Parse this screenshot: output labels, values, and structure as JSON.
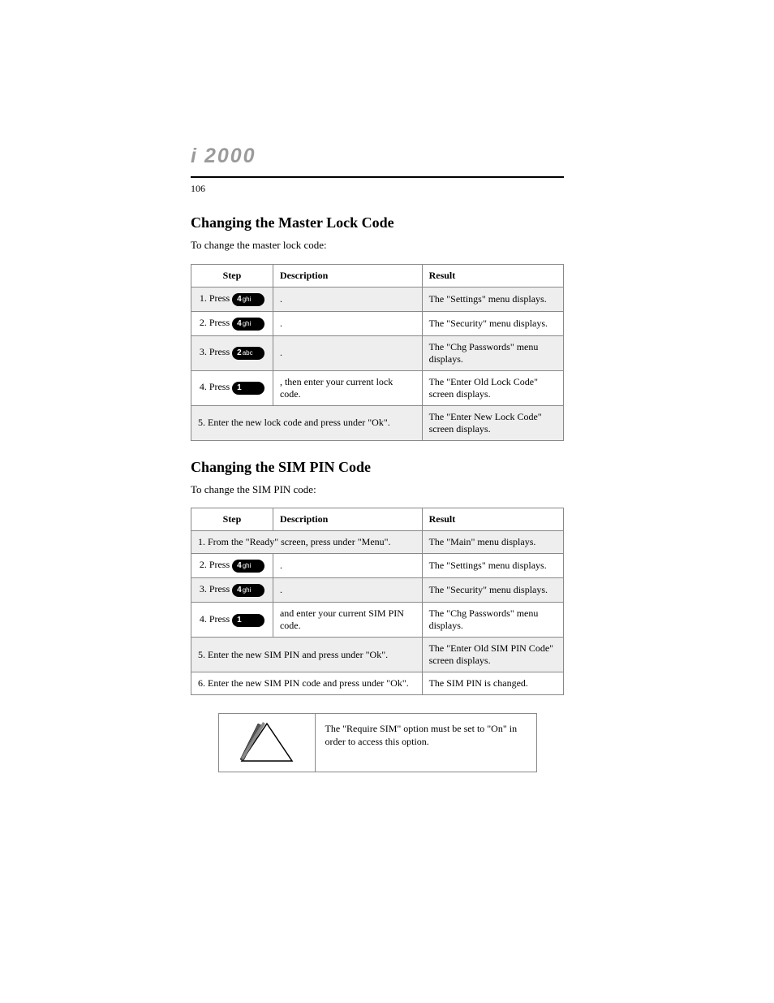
{
  "logo": {
    "i": "i",
    "num": "2000"
  },
  "page_number": "106",
  "section1": {
    "title": "Changing the Master Lock Code",
    "intro": "To change the master lock code:",
    "table": {
      "headers": [
        "Step",
        "Description",
        "Result"
      ],
      "rows": [
        {
          "shaded": true,
          "key_num": "4",
          "key_letters": "ghi",
          "prefix": "1. Press ",
          "suffix": ".",
          "result": "The \"Settings\" menu displays."
        },
        {
          "shaded": false,
          "key_num": "4",
          "key_letters": "ghi",
          "prefix": "2. Press ",
          "suffix": ".",
          "result": "The \"Security\" menu displays."
        },
        {
          "shaded": true,
          "key_num": "2",
          "key_letters": "abc",
          "prefix": "3. Press ",
          "suffix": ".",
          "result": "The \"Chg Passwords\" menu displays."
        },
        {
          "shaded": false,
          "key_num": "1",
          "key_letters": "",
          "prefix": "4. Press ",
          "suffix": ", then enter your current lock code.",
          "result": "The \"Enter Old Lock Code\" screen displays."
        },
        {
          "shaded": true,
          "colspan_text": "5. Enter the new lock code and press   under \"Ok\".",
          "result": "The \"Enter New Lock Code\" screen displays."
        }
      ]
    }
  },
  "section2": {
    "title": "Changing the SIM PIN Code",
    "intro": "To change the SIM PIN code:",
    "table": {
      "headers": [
        "Step",
        "Description",
        "Result"
      ],
      "rows": [
        {
          "shaded": true,
          "colspan_text": "1. From the \"Ready\" screen, press   under \"Menu\".",
          "result": "The \"Main\" menu displays."
        },
        {
          "shaded": false,
          "key_num": "4",
          "key_letters": "ghi",
          "prefix": "2. Press ",
          "suffix": ".",
          "result": "The \"Settings\" menu displays."
        },
        {
          "shaded": true,
          "key_num": "4",
          "key_letters": "ghi",
          "prefix": "3. Press ",
          "suffix": ".",
          "result": "The \"Security\" menu displays."
        },
        {
          "shaded": false,
          "key_num": "1",
          "key_letters": "",
          "prefix": "4. Press ",
          "suffix": " and enter your current SIM PIN code.",
          "result": "The \"Chg Passwords\" menu displays."
        },
        {
          "shaded": true,
          "colspan_text": "5. Enter the new SIM PIN and press   under \"Ok\".",
          "result": "The \"Enter Old SIM PIN Code\" screen displays."
        },
        {
          "shaded": false,
          "colspan_text": "6. Enter the new SIM PIN code and press   under \"Ok\".",
          "result": "The SIM PIN is changed."
        }
      ]
    }
  },
  "callout": {
    "text": "The \"Require SIM\" option must be set to \"On\" in order to access this option."
  },
  "colors": {
    "shade": "#eeeeee",
    "border": "#888888",
    "logo": "#9b9b9b",
    "bg": "#ffffff"
  }
}
